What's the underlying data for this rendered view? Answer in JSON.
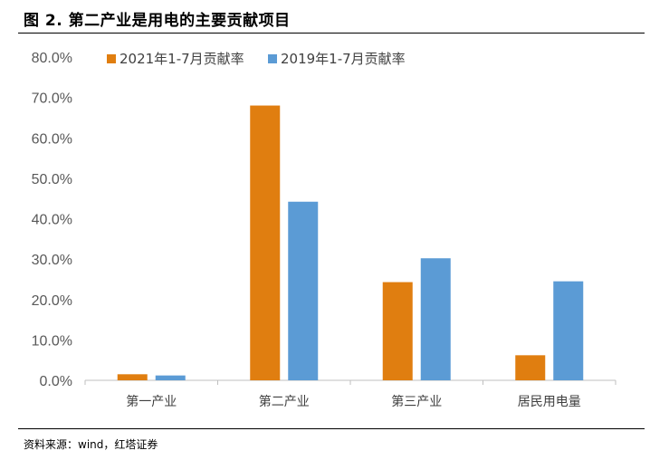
{
  "figure": {
    "title": "图 2. 第二产业是用电的主要贡献项目",
    "source": "资料来源：wind，红塔证券"
  },
  "colors": {
    "series1": "#E07E10",
    "series2": "#5B9BD5",
    "axis": "#BFBFBF"
  },
  "chart_data": {
    "type": "bar",
    "categories": [
      "第一产业",
      "第二产业",
      "第三产业",
      "居民用电量"
    ],
    "series": [
      {
        "name": "2021年1-7月贡献率",
        "values": [
          1.5,
          68.0,
          24.3,
          6.2
        ]
      },
      {
        "name": "2019年1-7月贡献率",
        "values": [
          1.2,
          44.2,
          30.2,
          24.5
        ]
      }
    ],
    "yticks": [
      "0.0%",
      "10.0%",
      "20.0%",
      "30.0%",
      "40.0%",
      "50.0%",
      "60.0%",
      "70.0%",
      "80.0%"
    ],
    "ylim": [
      0,
      80
    ],
    "grid": false,
    "legend": "top-left"
  }
}
